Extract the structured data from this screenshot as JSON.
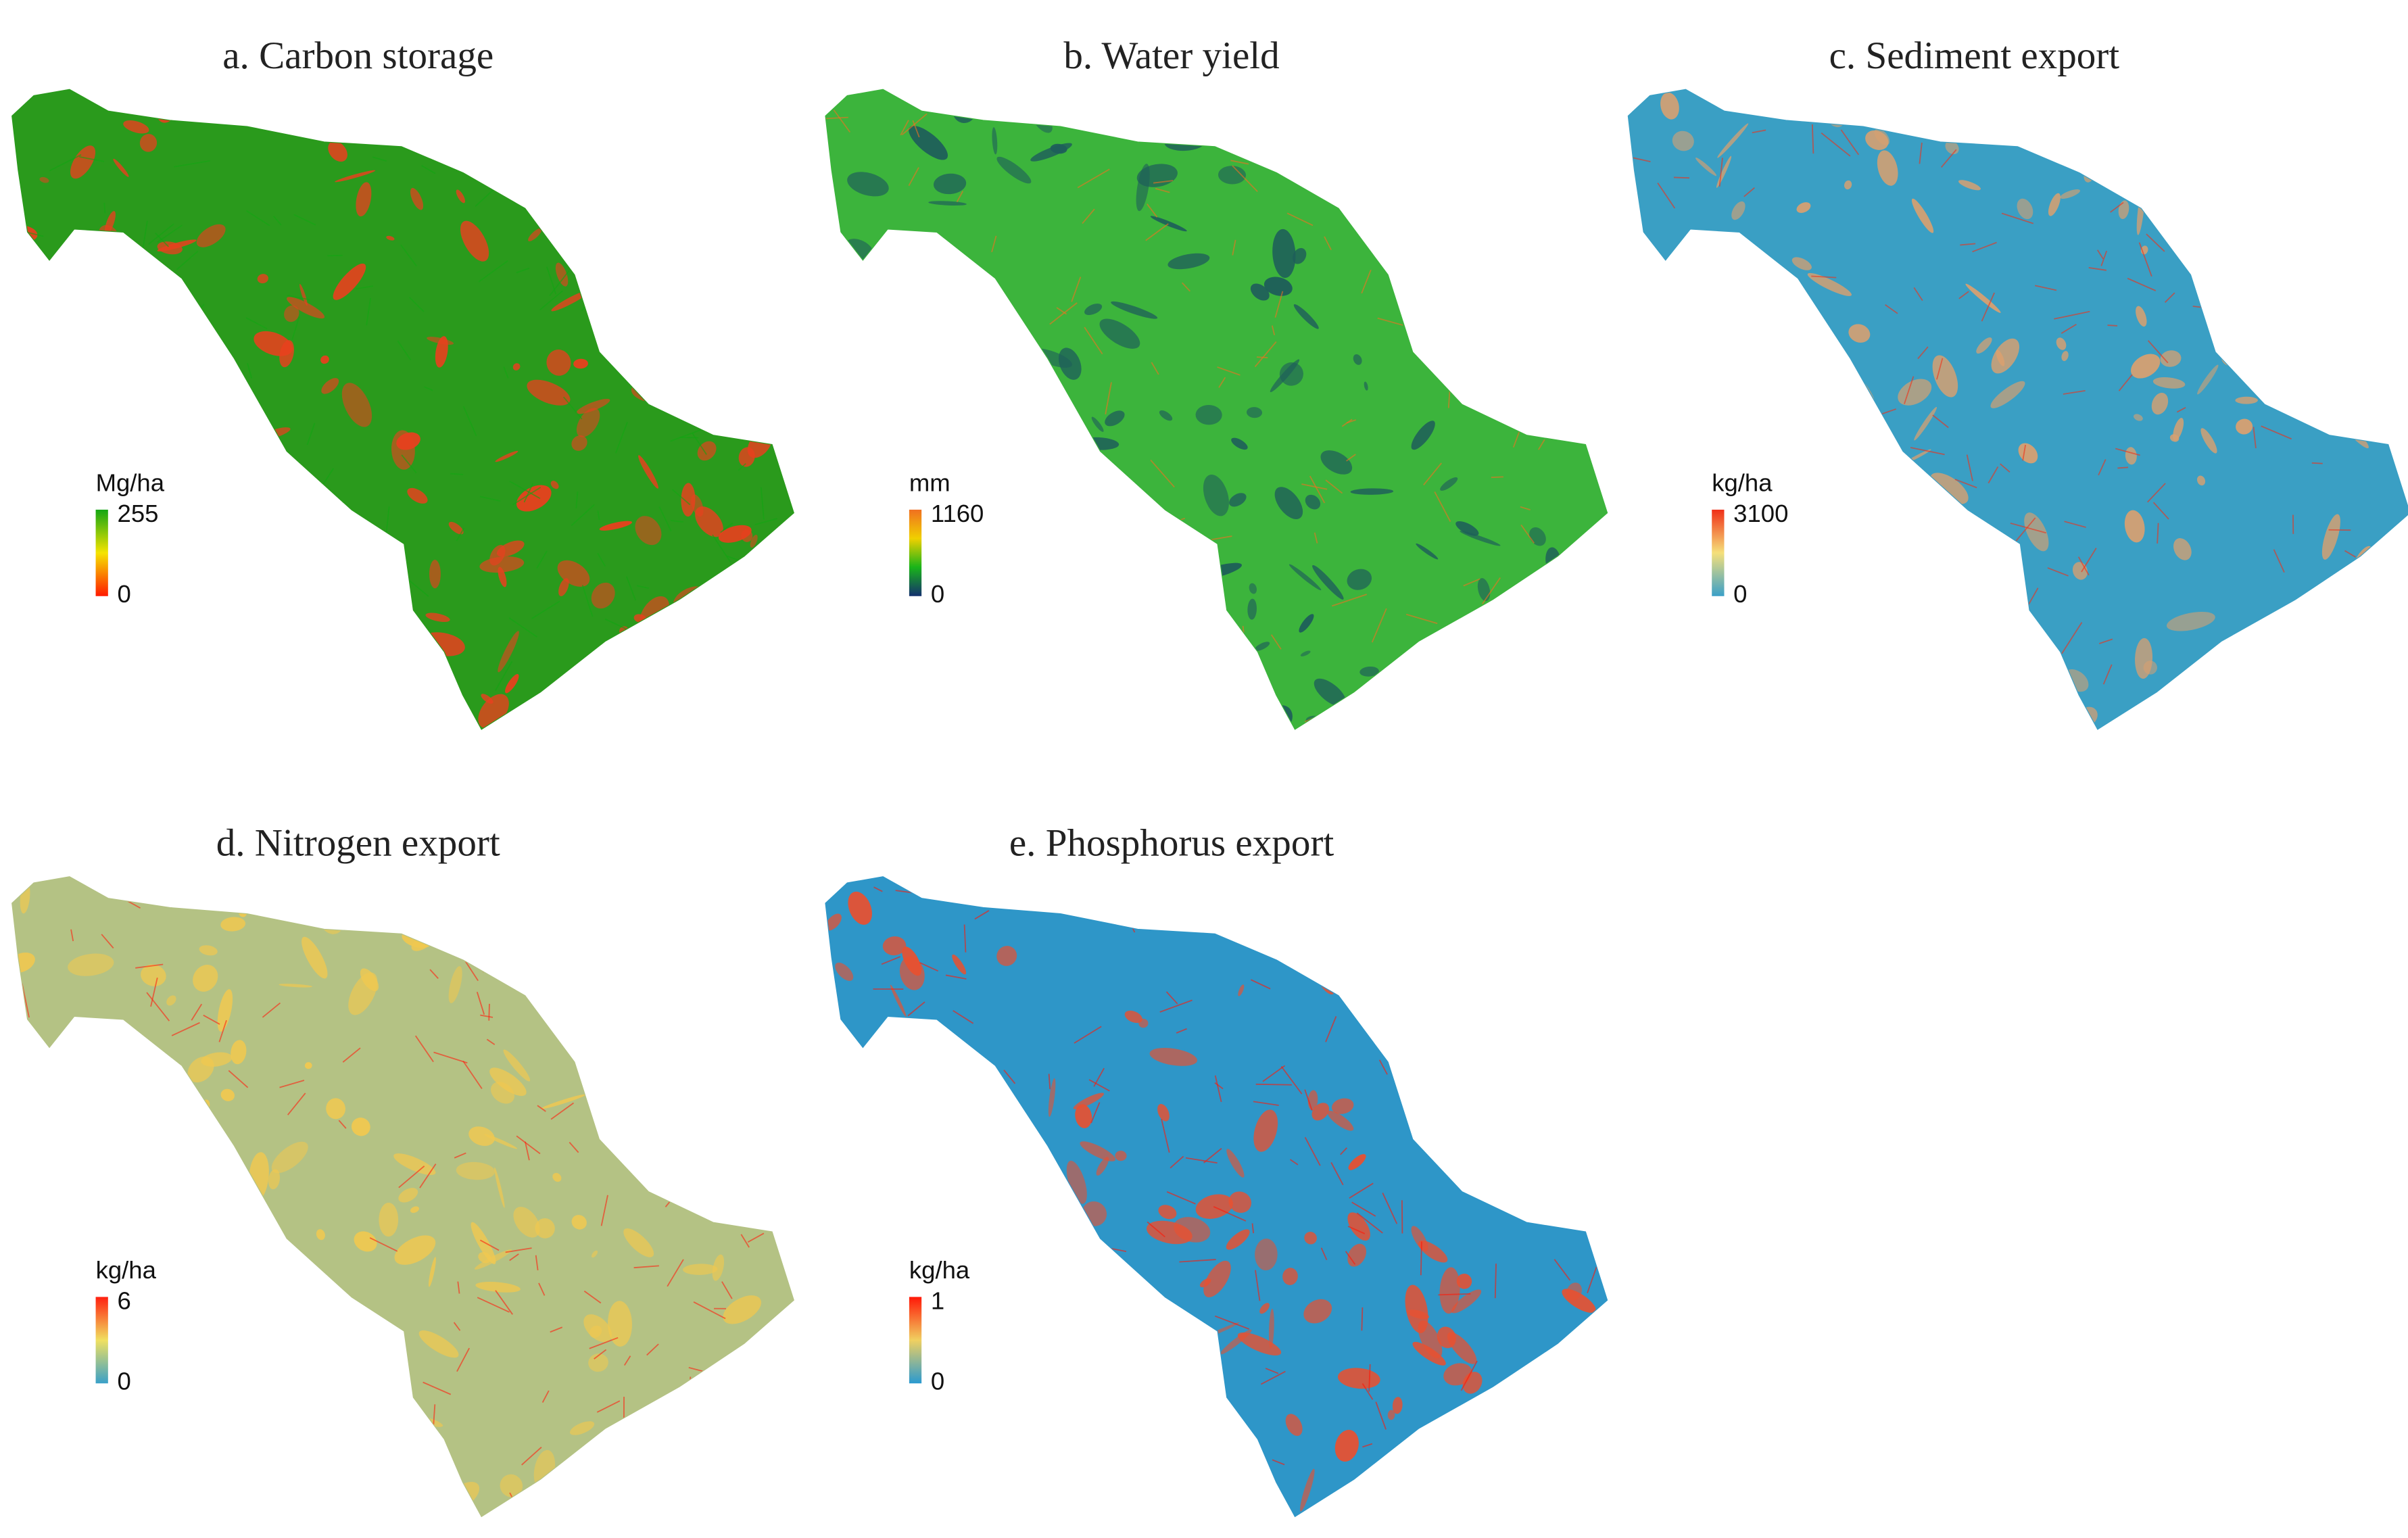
{
  "panels": [
    {
      "title": "a. Carbon storage",
      "unit": "Mg/ha",
      "max": 255,
      "min": 0,
      "colors": [
        "#ff1a00",
        "#f5e400",
        "#13a613"
      ],
      "base_color": "#2a9a1c",
      "accent_color": "#e8401e"
    },
    {
      "title": "b. Water yield",
      "unit": "mm",
      "max": 1160,
      "min": 0,
      "colors": [
        "#14306e",
        "#19b419",
        "#f0d000",
        "#f07020"
      ],
      "base_color": "#3cb43c",
      "accent_color": "#1e5e5a"
    },
    {
      "title": "c. Sediment export",
      "unit": "kg/ha",
      "max": 3100,
      "min": 0,
      "colors": [
        "#3aa0c8",
        "#f5e07a",
        "#f03018"
      ],
      "base_color": "#3a9fc4",
      "accent_color": "#d8a070"
    },
    {
      "title": "d. Nitrogen export",
      "unit": "kg/ha",
      "max": 6,
      "min": 0,
      "colors": [
        "#3aa0c8",
        "#f0e060",
        "#ff2010"
      ],
      "base_color": "#b4c284",
      "accent_color": "#f0c850"
    },
    {
      "title": "e. Phosphorus export",
      "unit": "kg/ha",
      "max": 1,
      "min": 0,
      "colors": [
        "#2a9ad0",
        "#f0d060",
        "#ff1808"
      ],
      "base_color": "#2e96c8",
      "accent_color": "#e85030"
    }
  ]
}
